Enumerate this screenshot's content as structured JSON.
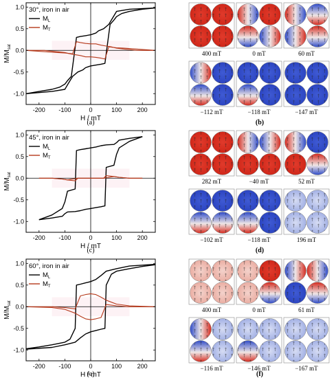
{
  "figure": {
    "panel_letters": [
      "(a)",
      "(b)",
      "(c)",
      "(d)",
      "(e)",
      "(f)"
    ]
  },
  "chart_data": [
    {
      "type": "line",
      "panel": "(a)",
      "annotation": "30°, iron in air",
      "xlabel": "H / mT",
      "ylabel": "M/M",
      "ylabel_sub": "sat",
      "xlim": [
        -250,
        250
      ],
      "ylim": [
        -1.25,
        1.1
      ],
      "xticks": [
        -200,
        -100,
        0,
        100,
        200
      ],
      "yticks": [
        -1.0,
        -0.5,
        0.0,
        0.5,
        1.0
      ],
      "legend": "top-left",
      "legend_entries": [
        {
          "main": "M",
          "sub": "L"
        },
        {
          "main": "M",
          "sub": "T"
        }
      ],
      "series": [
        {
          "key": "ML",
          "color": "#000000",
          "x": [
            250,
            150,
            100,
            85,
            70,
            50,
            30,
            20,
            10,
            0,
            -20,
            -40,
            -55,
            -75,
            -90,
            -100,
            -120,
            -150,
            -200,
            -250
          ],
          "y": [
            0.98,
            0.95,
            0.9,
            0.75,
            0.6,
            0.5,
            0.45,
            0.4,
            0.38,
            0.36,
            0.34,
            0.32,
            0.3,
            -0.6,
            -0.7,
            -0.78,
            -0.85,
            -0.9,
            -0.95,
            -1.0
          ]
        },
        {
          "key": "ML",
          "color": "#000000",
          "x": [
            -250,
            -150,
            -100,
            -85,
            -70,
            -50,
            -30,
            -20,
            -10,
            0,
            20,
            40,
            55,
            75,
            90,
            100,
            120,
            150,
            200,
            250
          ],
          "y": [
            -1.0,
            -0.95,
            -0.9,
            -0.75,
            -0.6,
            -0.5,
            -0.45,
            -0.4,
            -0.38,
            -0.36,
            -0.34,
            -0.32,
            -0.3,
            0.6,
            0.7,
            0.78,
            0.85,
            0.9,
            0.95,
            0.98
          ]
        },
        {
          "key": "MT",
          "color": "#b5381a",
          "x": [
            250,
            180,
            130,
            100,
            80,
            60,
            40,
            20,
            0,
            -20,
            -40,
            -55,
            -70,
            -100,
            -130,
            -180,
            -250
          ],
          "y": [
            0.0,
            0.0,
            0.03,
            0.05,
            0.08,
            0.1,
            0.12,
            0.15,
            0.15,
            0.16,
            0.18,
            0.2,
            -0.08,
            -0.06,
            -0.05,
            -0.03,
            0.0
          ]
        },
        {
          "key": "MT",
          "color": "#b5381a",
          "x": [
            -250,
            -180,
            -130,
            -100,
            -80,
            -60,
            -40,
            -20,
            0,
            20,
            40,
            55,
            70,
            100,
            130,
            180,
            250
          ],
          "y": [
            0.0,
            0.0,
            -0.03,
            -0.05,
            -0.08,
            -0.1,
            -0.12,
            -0.15,
            -0.15,
            -0.16,
            -0.18,
            -0.2,
            0.08,
            0.06,
            0.05,
            0.03,
            0.0
          ]
        }
      ]
    },
    {
      "type": "line",
      "panel": "(c)",
      "annotation": "45°, iron in air",
      "xlabel": "H / mT",
      "ylabel": "M/M",
      "ylabel_sub": "sat",
      "xlim": [
        -250,
        250
      ],
      "ylim": [
        -1.25,
        1.1
      ],
      "xticks": [
        -200,
        -100,
        0,
        100,
        200
      ],
      "yticks": [
        -1.0,
        -0.5,
        0.0,
        0.5,
        1.0
      ],
      "legend": "top-left",
      "legend_entries": [
        {
          "main": "M",
          "sub": "L"
        },
        {
          "main": "M",
          "sub": "T"
        }
      ],
      "series": [
        {
          "key": "ML",
          "color": "#000000",
          "x": [
            200,
            150,
            110,
            100,
            90,
            60,
            40,
            20,
            0,
            -20,
            -40,
            -55,
            -60,
            -90,
            -100,
            -110,
            -150,
            -200
          ],
          "y": [
            0.96,
            0.92,
            0.88,
            0.82,
            0.78,
            0.77,
            0.75,
            0.72,
            0.7,
            0.68,
            0.66,
            0.64,
            -0.25,
            -0.3,
            -0.55,
            -0.7,
            -0.85,
            -0.96
          ]
        },
        {
          "key": "ML",
          "color": "#000000",
          "x": [
            -200,
            -150,
            -110,
            -100,
            -90,
            -60,
            -40,
            -20,
            0,
            20,
            40,
            55,
            60,
            90,
            100,
            110,
            150,
            200
          ],
          "y": [
            -0.96,
            -0.92,
            -0.88,
            -0.82,
            -0.78,
            -0.77,
            -0.75,
            -0.72,
            -0.7,
            -0.68,
            -0.66,
            -0.64,
            0.25,
            0.3,
            0.55,
            0.7,
            0.85,
            0.96
          ]
        },
        {
          "key": "MT",
          "color": "#b5381a",
          "x": [
            200,
            150,
            110,
            90,
            70,
            50,
            0,
            -50,
            -60,
            -90,
            -110,
            -150,
            -200
          ],
          "y": [
            0.0,
            0.0,
            0.02,
            0.04,
            0.02,
            0.0,
            0.0,
            0.0,
            -0.06,
            -0.04,
            -0.02,
            0.0,
            0.0
          ]
        },
        {
          "key": "MT",
          "color": "#b5381a",
          "x": [
            -200,
            -150,
            -110,
            -90,
            -70,
            -50,
            0,
            50,
            60,
            90,
            110,
            150,
            200
          ],
          "y": [
            0.0,
            0.0,
            -0.02,
            -0.04,
            -0.02,
            0.0,
            0.0,
            0.0,
            0.06,
            0.04,
            0.02,
            0.0,
            0.0
          ]
        }
      ]
    },
    {
      "type": "line",
      "panel": "(e)",
      "annotation": "60°, iron in air",
      "xlabel": "H / mT",
      "ylabel": "M/M",
      "ylabel_sub": "sat",
      "xlim": [
        -250,
        250
      ],
      "ylim": [
        -1.25,
        1.1
      ],
      "xticks": [
        -200,
        -100,
        0,
        100,
        200
      ],
      "yticks": [
        -1.0,
        -0.5,
        0.0,
        0.5,
        1.0
      ],
      "legend": "top-left",
      "legend_entries": [
        {
          "main": "M",
          "sub": "L"
        },
        {
          "main": "M",
          "sub": "T"
        }
      ],
      "series": [
        {
          "key": "ML",
          "color": "#000000",
          "x": [
            250,
            150,
            100,
            60,
            40,
            20,
            0,
            -20,
            -40,
            -55,
            -60,
            -80,
            -100,
            -150,
            -200,
            -250
          ],
          "y": [
            0.98,
            0.94,
            0.88,
            0.82,
            0.72,
            0.63,
            0.58,
            0.55,
            0.52,
            0.5,
            -0.5,
            -0.75,
            -0.82,
            -0.88,
            -0.93,
            -0.97
          ]
        },
        {
          "key": "ML",
          "color": "#000000",
          "x": [
            -250,
            -150,
            -100,
            -60,
            -40,
            -20,
            0,
            20,
            40,
            55,
            60,
            80,
            100,
            150,
            200,
            250
          ],
          "y": [
            -0.98,
            -0.94,
            -0.88,
            -0.82,
            -0.72,
            -0.63,
            -0.58,
            -0.55,
            -0.52,
            -0.5,
            0.5,
            0.75,
            0.82,
            0.88,
            0.93,
            0.97
          ]
        },
        {
          "key": "MT",
          "color": "#b5381a",
          "x": [
            250,
            150,
            100,
            60,
            40,
            20,
            0,
            -20,
            -40,
            -60,
            -100,
            -150,
            -250
          ],
          "y": [
            0.0,
            0.02,
            0.06,
            0.15,
            0.22,
            0.28,
            0.3,
            0.28,
            0.25,
            -0.05,
            -0.02,
            0.0,
            0.0
          ]
        },
        {
          "key": "MT",
          "color": "#b5381a",
          "x": [
            -250,
            -150,
            -100,
            -60,
            -40,
            -20,
            0,
            20,
            40,
            60,
            100,
            150,
            250
          ],
          "y": [
            0.0,
            -0.02,
            -0.06,
            -0.15,
            -0.22,
            -0.28,
            -0.3,
            -0.28,
            -0.25,
            0.05,
            0.02,
            0.0,
            0.0
          ]
        }
      ]
    },
    {
      "type": "heatmap",
      "panel": "(b)",
      "map_labels": [
        "400 mT",
        "0 mT",
        "60 mT",
        "−112 mT",
        "−118 mT",
        "−147 mT"
      ],
      "colors": {
        "positive": "#d42a1e",
        "negative": "#2845c8",
        "neutral": "#f2ece9"
      }
    },
    {
      "type": "heatmap",
      "panel": "(d)",
      "map_labels": [
        "282 mT",
        "−40 mT",
        "52 mT",
        "−102 mT",
        "−118 mT",
        "196 mT"
      ],
      "colors": {
        "positive": "#d42a1e",
        "negative": "#2845c8",
        "neutral": "#f2ece9"
      }
    },
    {
      "type": "heatmap",
      "panel": "(f)",
      "map_labels": [
        "400 mT",
        "0 mT",
        "61 mT",
        "−116 mT",
        "−146 mT",
        "−167 mT"
      ],
      "colors": {
        "positive": "#d42a1e",
        "negative": "#2845c8",
        "neutral": "#f2ece9"
      }
    }
  ]
}
